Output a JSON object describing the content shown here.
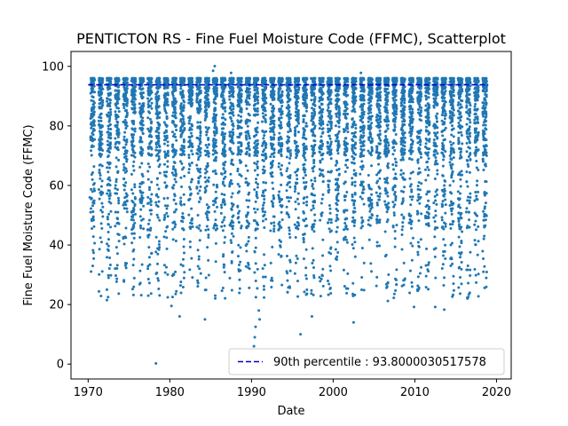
{
  "chart_data": {
    "type": "scatter",
    "title": "PENTICTON RS - Fine Fuel Moisture Code (FFMC), Scatterplot",
    "xlabel": "Date",
    "ylabel": "Fine Fuel Moisture Code (FFMC)",
    "xlim": [
      1967.9,
      2021.8
    ],
    "ylim": [
      -5,
      105
    ],
    "x_ticks": [
      1970,
      1980,
      1990,
      2000,
      2010,
      2020
    ],
    "y_ticks": [
      0,
      20,
      40,
      60,
      80,
      100
    ],
    "x_tick_labels": [
      "1970",
      "1980",
      "1990",
      "2000",
      "2010",
      "2020"
    ],
    "y_tick_labels": [
      "0",
      "20",
      "40",
      "60",
      "80",
      "100"
    ],
    "grid": false,
    "legend_position": "bottom-right",
    "marker_color": "#1f77b4",
    "season": {
      "first_year": 1970,
      "last_year": 2018,
      "start_fraction": 0.3,
      "end_fraction": 0.8
    },
    "typical_range": [
      70,
      96
    ],
    "reference_lines": [
      {
        "label": "90th percentile : 93.8000030517578",
        "value": 93.8000030517578,
        "x_range": [
          1970.0,
          2019.0
        ],
        "color": "#0000cc",
        "style": "dashed"
      }
    ],
    "notable_points": [
      {
        "x": 1978.3,
        "y": 0.2
      },
      {
        "x": 1990.3,
        "y": 6
      },
      {
        "x": 1990.4,
        "y": 9
      },
      {
        "x": 1990.5,
        "y": 12.5
      },
      {
        "x": 1991.0,
        "y": 15
      },
      {
        "x": 1990.9,
        "y": 18
      },
      {
        "x": 1996.0,
        "y": 10
      },
      {
        "x": 1997.4,
        "y": 16
      },
      {
        "x": 2002.5,
        "y": 14
      },
      {
        "x": 1972.3,
        "y": 21.5
      },
      {
        "x": 1972.3,
        "y": 25
      },
      {
        "x": 1972.5,
        "y": 29
      },
      {
        "x": 1981.2,
        "y": 16
      },
      {
        "x": 1980.2,
        "y": 19.5
      },
      {
        "x": 1984.3,
        "y": 15
      },
      {
        "x": 1985.5,
        "y": 100.1
      },
      {
        "x": 1985.3,
        "y": 98.5
      },
      {
        "x": 1987.5,
        "y": 97.8
      },
      {
        "x": 2003.4,
        "y": 97.8
      },
      {
        "x": 2013.6,
        "y": 18.3
      },
      {
        "x": 2012.5,
        "y": 19.2
      },
      {
        "x": 2009.9,
        "y": 19.2
      },
      {
        "x": 2006.7,
        "y": 21.2
      },
      {
        "x": 2018.4,
        "y": 31
      },
      {
        "x": 2016.5,
        "y": 33
      },
      {
        "x": 2014.4,
        "y": 33
      },
      {
        "x": 1970.2,
        "y": 56
      },
      {
        "x": 1970.3,
        "y": 51
      },
      {
        "x": 2018.5,
        "y": 43
      }
    ]
  }
}
